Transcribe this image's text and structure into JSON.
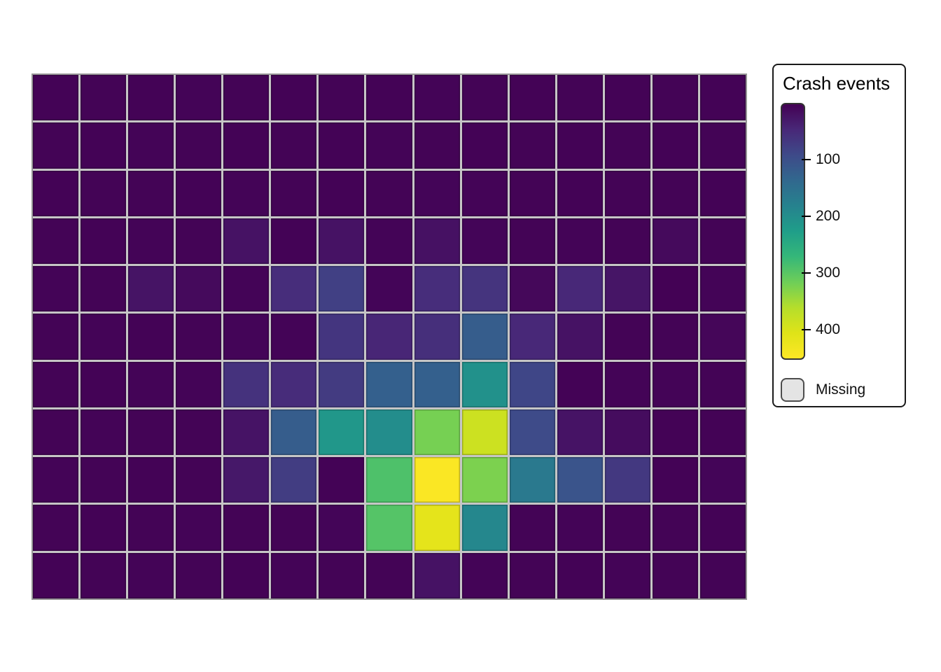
{
  "figure": {
    "kind": "gridded-heatmap-map",
    "background": "#ffffff"
  },
  "legend": {
    "title": "Crash events",
    "ticks": [
      100,
      200,
      300,
      400
    ],
    "missing_label": "Missing",
    "missing_fill": "#e4e4e4",
    "missing_border": "#4d4d4d"
  },
  "chart_data": {
    "type": "heatmap",
    "title": "",
    "legend_title": "Crash events",
    "legend_position": "right",
    "grid": {
      "rows": 11,
      "cols": 15,
      "line_color": "#c6c6c6",
      "border_color": "#959595"
    },
    "scale": {
      "min": 0,
      "max": 453,
      "colormap": "viridis",
      "na_color": "#e4e4e4",
      "anchors": [
        [
          0.0,
          "#440154"
        ],
        [
          0.1,
          "#482878"
        ],
        [
          0.2,
          "#3e4a89"
        ],
        [
          0.3,
          "#31688e"
        ],
        [
          0.4,
          "#26828e"
        ],
        [
          0.5,
          "#1f9e89"
        ],
        [
          0.6,
          "#35b779"
        ],
        [
          0.7,
          "#6ece58"
        ],
        [
          0.8,
          "#b5de2b"
        ],
        [
          0.9,
          "#dfe318"
        ],
        [
          1.0,
          "#fde725"
        ]
      ]
    },
    "values": [
      [
        2,
        3,
        2,
        4,
        3,
        2,
        3,
        2,
        4,
        3,
        2,
        3,
        2,
        3,
        2
      ],
      [
        3,
        2,
        4,
        3,
        2,
        3,
        2,
        4,
        3,
        2,
        3,
        2,
        3,
        2,
        3
      ],
      [
        2,
        3,
        3,
        2,
        4,
        3,
        2,
        3,
        5,
        4,
        3,
        2,
        3,
        3,
        2
      ],
      [
        3,
        2,
        4,
        3,
        20,
        2,
        20,
        4,
        19,
        5,
        3,
        4,
        3,
        10,
        3
      ],
      [
        4,
        3,
        22,
        10,
        4,
        52,
        77,
        5,
        52,
        61,
        8,
        45,
        23,
        1,
        4
      ],
      [
        3,
        4,
        2,
        3,
        5,
        4,
        63,
        43,
        54,
        120,
        45,
        20,
        3,
        3,
        6
      ],
      [
        3,
        2,
        4,
        4,
        59,
        50,
        70,
        124,
        124,
        205,
        85,
        2,
        4,
        4,
        3
      ],
      [
        3,
        4,
        3,
        3,
        21,
        120,
        215,
        199,
        322,
        387,
        92,
        21,
        13,
        2,
        2
      ],
      [
        4,
        3,
        2,
        3,
        27,
        73,
        2,
        292,
        448,
        326,
        165,
        106,
        66,
        2,
        5
      ],
      [
        3,
        2,
        3,
        4,
        3,
        3,
        5,
        297,
        417,
        190,
        3,
        4,
        3,
        3,
        2
      ],
      [
        2,
        3,
        4,
        3,
        2,
        4,
        3,
        3,
        20,
        4,
        3,
        2,
        4,
        3,
        3
      ]
    ]
  }
}
